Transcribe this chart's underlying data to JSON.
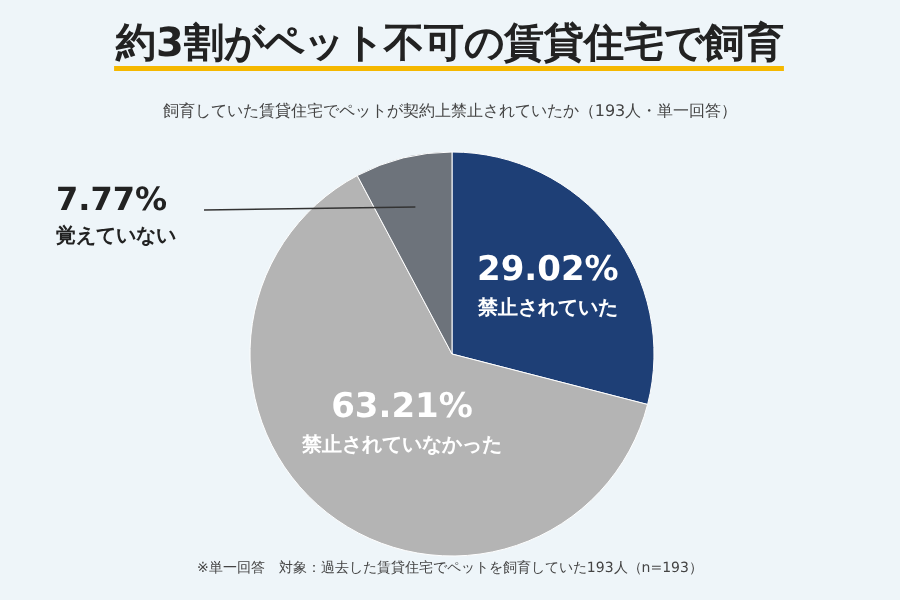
{
  "chart_data": {
    "type": "pie",
    "title": "約3割がペット不可の賃貸住宅で飼育",
    "subtitle": "飼育していた賃貸住宅でペットが契約上禁止されていたか（193人・単一回答）",
    "categories": [
      "禁止されていた",
      "禁止されていなかった",
      "覚えていない"
    ],
    "values": [
      29.02,
      63.21,
      7.77
    ],
    "value_labels": [
      "29.02%",
      "63.21%",
      "7.77%"
    ],
    "colors": [
      "#1e3f76",
      "#b4b4b4",
      "#6d737b"
    ],
    "annotations": [
      "※単一回答　対象：過去した賃貸住宅でペットを飼育していた193人（n=193）"
    ]
  }
}
